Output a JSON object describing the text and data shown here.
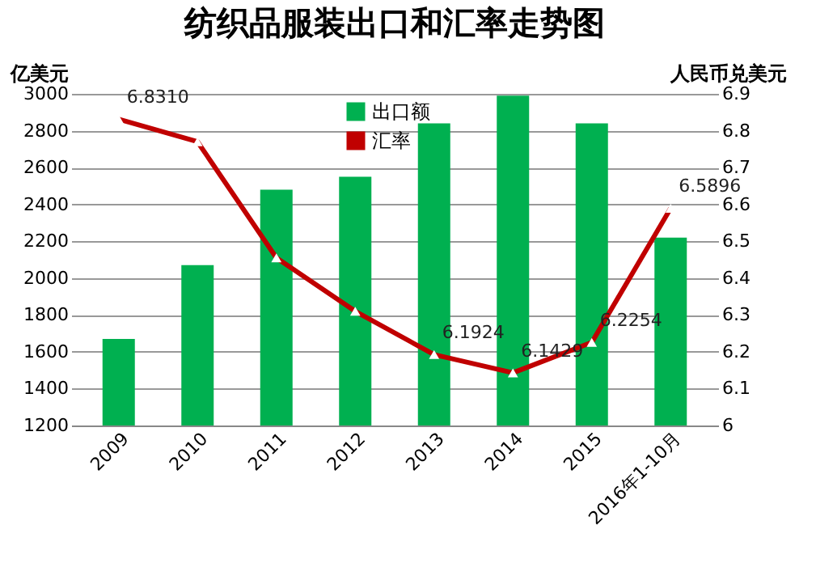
{
  "chart_data": {
    "type": "bar",
    "title": "纺织品服装出口和汇率走势图",
    "categories": [
      "2009",
      "2010",
      "2011",
      "2012",
      "2013",
      "2014",
      "2015",
      "2016年1-10月"
    ],
    "ylabel": "亿美元",
    "y2label": "人民币兑美元",
    "ylim": [
      1200,
      3000
    ],
    "yticks": [
      1200,
      1400,
      1600,
      1800,
      2000,
      2200,
      2400,
      2600,
      2800,
      3000
    ],
    "y2lim": [
      6,
      6.9
    ],
    "y2ticks": [
      6,
      6.1,
      6.2,
      6.3,
      6.4,
      6.5,
      6.6,
      6.7,
      6.8,
      6.9
    ],
    "grid": "y",
    "legend": "top",
    "series": [
      {
        "name": "出口额",
        "color": "#00b050",
        "values": [
          1670,
          2070,
          2480,
          2550,
          2840,
          2990,
          2840,
          2220
        ]
      },
      {
        "name": "汇率",
        "type": "line",
        "axis": "y2",
        "color": "#c00000",
        "marker": "triangle",
        "values": [
          6.831,
          6.77,
          6.455,
          6.31,
          6.1924,
          6.1429,
          6.2254,
          6.5896
        ],
        "value_labels": [
          "6.8310",
          null,
          null,
          null,
          "6.1924",
          "6.1429",
          "6.2254",
          "6.5896"
        ]
      }
    ]
  }
}
